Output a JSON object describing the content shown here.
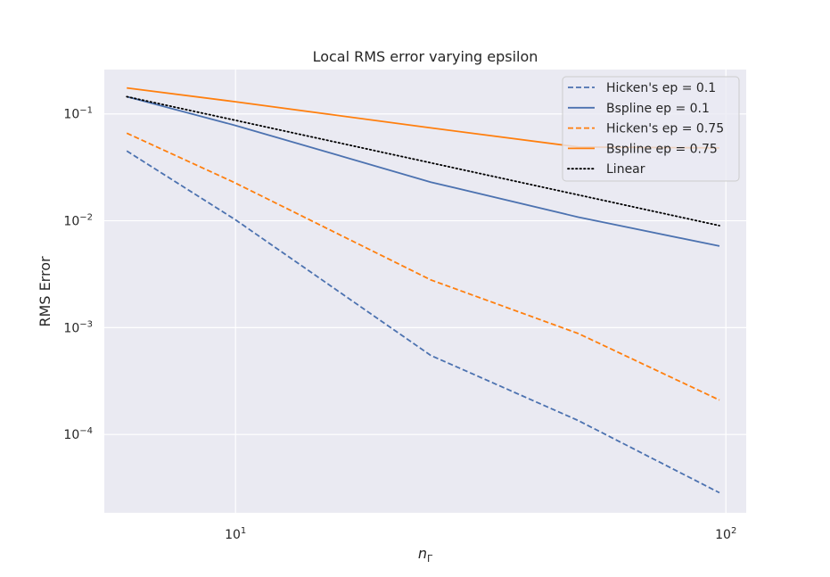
{
  "chart_data": {
    "type": "line",
    "title": "Local RMS error varying epsilon",
    "xlabel": "n_Γ",
    "ylabel": "RMS Error",
    "xscale": "log",
    "yscale": "log",
    "xlim": [
      5.4,
      110
    ],
    "ylim": [
      1.85e-05,
      0.26
    ],
    "x_ticks": [
      {
        "value": 10,
        "base": "10",
        "exp": "1"
      },
      {
        "value": 100,
        "base": "10",
        "exp": "2"
      }
    ],
    "y_ticks": [
      {
        "value": 0.0001,
        "base": "10",
        "exp": "−4"
      },
      {
        "value": 0.001,
        "base": "10",
        "exp": "−3"
      },
      {
        "value": 0.01,
        "base": "10",
        "exp": "−2"
      },
      {
        "value": 0.1,
        "base": "10",
        "exp": "−1"
      }
    ],
    "grid": true,
    "background": "#eaeaf2",
    "legend_position": "top-right",
    "series": [
      {
        "name": "Hicken's ep = 0.1",
        "color": "#4c72b0",
        "dash": "dashed",
        "x": [
          6,
          10,
          25,
          50,
          97
        ],
        "y": [
          0.045,
          0.0102,
          0.00055,
          0.000135,
          2.85e-05
        ]
      },
      {
        "name": "Bspline ep = 0.1",
        "color": "#4c72b0",
        "dash": "solid",
        "x": [
          6,
          10,
          25,
          50,
          97
        ],
        "y": [
          0.145,
          0.078,
          0.023,
          0.0108,
          0.0058
        ]
      },
      {
        "name": "Hicken's ep = 0.75",
        "color": "#ff7f0e",
        "dash": "dashed",
        "x": [
          6,
          10,
          25,
          50,
          97
        ],
        "y": [
          0.066,
          0.0225,
          0.0028,
          0.00088,
          0.00021
        ]
      },
      {
        "name": "Bspline ep = 0.75",
        "color": "#ff7f0e",
        "dash": "solid",
        "x": [
          6,
          10,
          25,
          50,
          97
        ],
        "y": [
          0.175,
          0.13,
          0.074,
          0.049,
          0.048
        ]
      },
      {
        "name": "Linear",
        "color": "#000000",
        "dash": "dotted",
        "x": [
          6,
          97
        ],
        "y": [
          0.145,
          0.009
        ]
      }
    ]
  }
}
